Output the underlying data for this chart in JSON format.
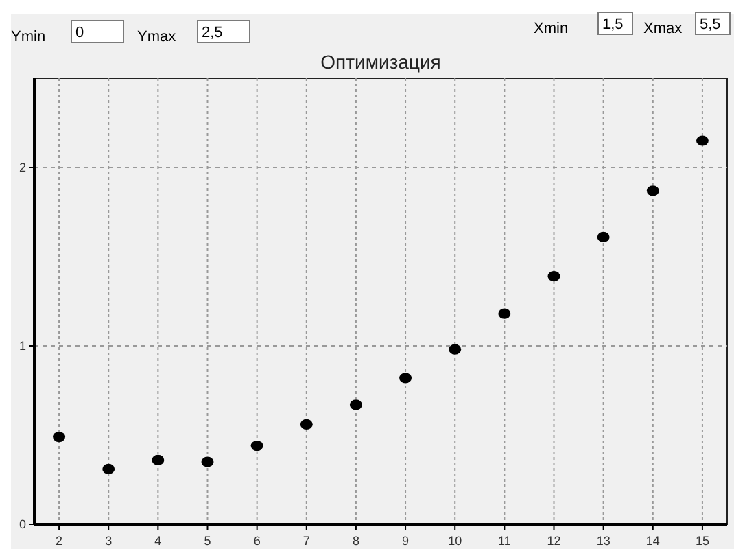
{
  "chart_data": {
    "type": "scatter",
    "title": "Оптимизация",
    "x": [
      2,
      3,
      4,
      5,
      6,
      7,
      8,
      9,
      10,
      11,
      12,
      13,
      14,
      15
    ],
    "values": [
      0.49,
      0.31,
      0.36,
      0.35,
      0.44,
      0.56,
      0.67,
      0.82,
      0.98,
      1.18,
      1.39,
      1.61,
      1.87,
      2.15
    ],
    "color": "#000000",
    "marker": "circle",
    "xlim": [
      1.5,
      15.5
    ],
    "xticks": [
      2,
      3,
      4,
      5,
      6,
      7,
      8,
      9,
      10,
      11,
      12,
      13,
      14,
      15
    ],
    "ylim": [
      0,
      2.5
    ],
    "yticks": [
      0,
      1,
      2
    ],
    "grid": true,
    "annotations": [
      "Ymin",
      "0",
      "Ymax",
      "2,5",
      "Xmin",
      "1,5",
      "Xmax",
      "5,5"
    ]
  }
}
